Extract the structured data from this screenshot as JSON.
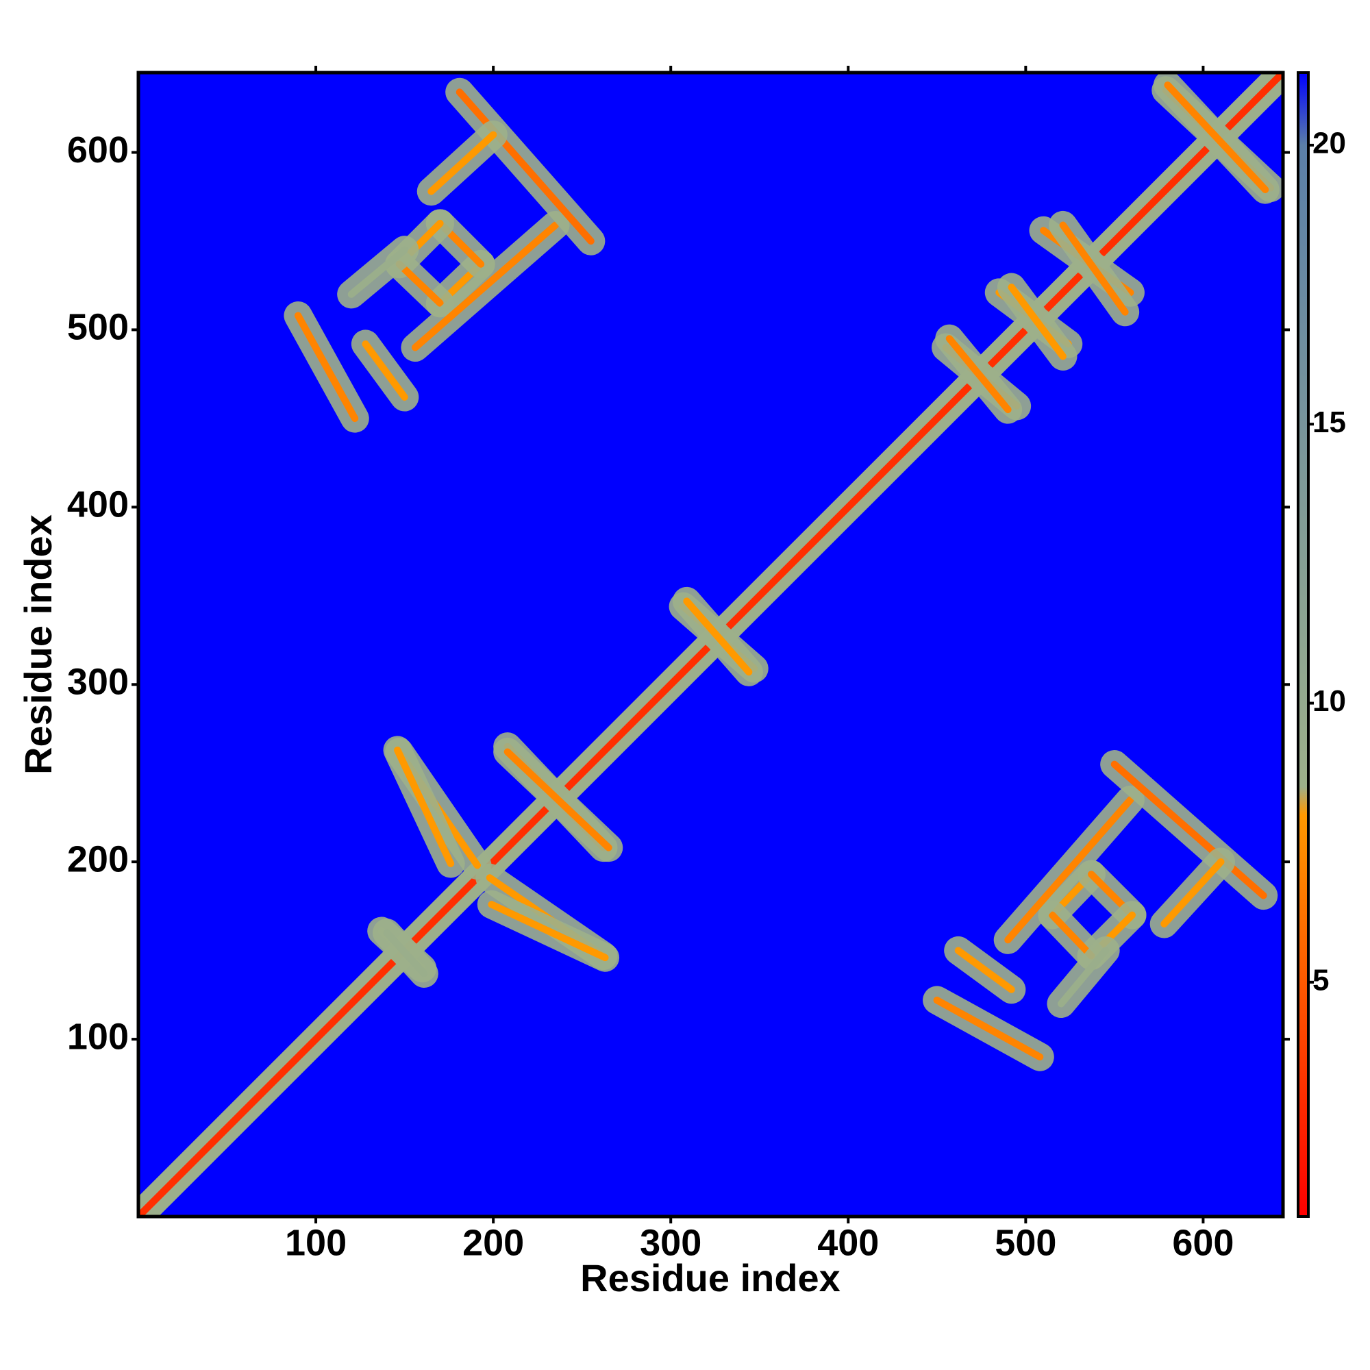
{
  "chart_data": {
    "type": "heatmap",
    "xlabel": "Residue index",
    "ylabel": "Residue index",
    "xlim": [
      0,
      645
    ],
    "ylim": [
      0,
      645
    ],
    "xticks": [
      100,
      200,
      300,
      400,
      500,
      600
    ],
    "yticks": [
      100,
      200,
      300,
      400,
      500,
      600
    ],
    "clim": [
      0.8,
      21.3
    ],
    "cticks": [
      5,
      10,
      15,
      20
    ],
    "colorscale": [
      [
        0.8,
        "#ff0000"
      ],
      [
        8,
        "#ff9900"
      ],
      [
        8.5,
        "#9db08a"
      ],
      [
        20,
        "#5b7fa8"
      ],
      [
        21.3,
        "#0000ff"
      ]
    ],
    "background": "#0000ff",
    "symmetric": true,
    "contacts": [
      {
        "x": [
          1,
          645
        ],
        "y": [
          1,
          645
        ],
        "value": 3
      },
      {
        "x": [
          450,
          508
        ],
        "y": [
          122,
          90
        ],
        "value": 7
      },
      {
        "x": [
          462,
          492
        ],
        "y": [
          150,
          128
        ],
        "value": 8
      },
      {
        "x": [
          515,
          537
        ],
        "y": [
          170,
          193
        ],
        "value": 8
      },
      {
        "x": [
          537,
          560
        ],
        "y": [
          193,
          170
        ],
        "value": 7
      },
      {
        "x": [
          560,
          537
        ],
        "y": [
          170,
          147
        ],
        "value": 8
      },
      {
        "x": [
          537,
          515
        ],
        "y": [
          147,
          170
        ],
        "value": 7
      },
      {
        "x": [
          490,
          559
        ],
        "y": [
          156,
          235
        ],
        "value": 7
      },
      {
        "x": [
          550,
          634
        ],
        "y": [
          255,
          181
        ],
        "value": 6
      },
      {
        "x": [
          578,
          610
        ],
        "y": [
          165,
          200
        ],
        "value": 8
      },
      {
        "x": [
          520,
          545
        ],
        "y": [
          120,
          150
        ],
        "value": 9
      },
      {
        "x": [
          191,
          147
        ],
        "y": [
          198,
          262
        ],
        "value": 8
      },
      {
        "x": [
          262,
          208
        ],
        "y": [
          208,
          265
        ],
        "value": 7
      },
      {
        "x": [
          263,
          199
        ],
        "y": [
          146,
          176
        ],
        "value": 8
      },
      {
        "x": [
          160,
          137
        ],
        "y": [
          140,
          161
        ],
        "value": 9
      },
      {
        "x": [
          347,
          307
        ],
        "y": [
          309,
          344
        ],
        "value": 8
      },
      {
        "x": [
          495,
          455
        ],
        "y": [
          457,
          490
        ],
        "value": 7
      },
      {
        "x": [
          524,
          485
        ],
        "y": [
          492,
          521
        ],
        "value": 8
      },
      {
        "x": [
          559,
          510
        ],
        "y": [
          521,
          556
        ],
        "value": 7
      },
      {
        "x": [
          638,
          579
        ],
        "y": [
          580,
          635
        ],
        "value": 7
      }
    ]
  }
}
